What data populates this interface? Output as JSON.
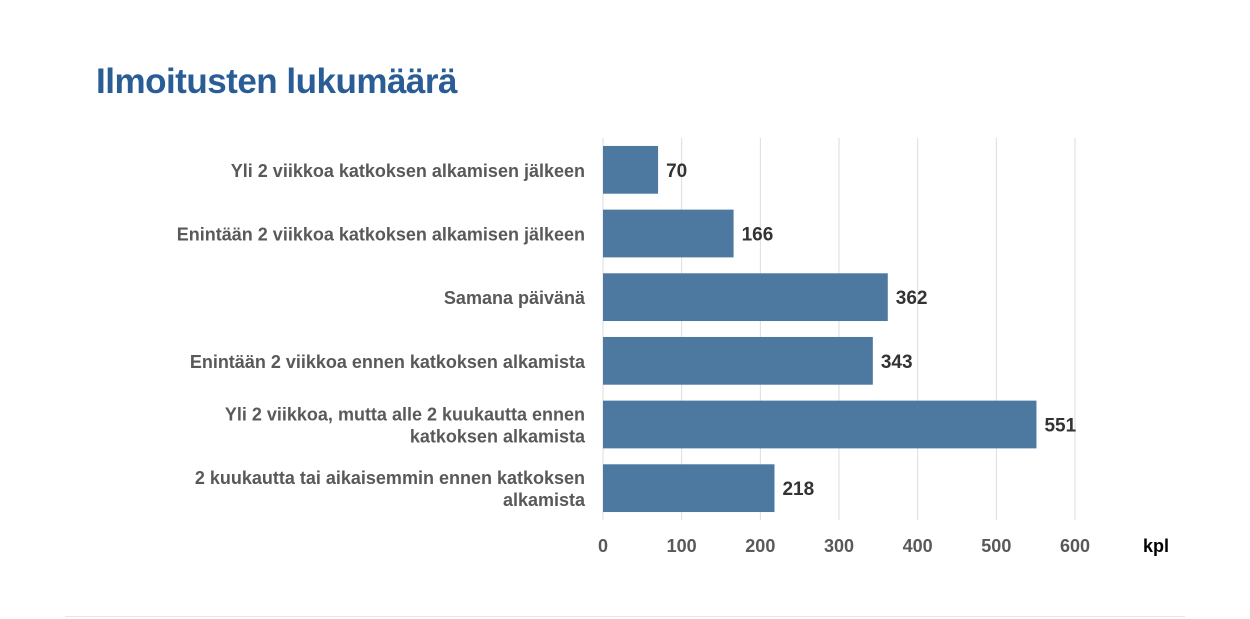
{
  "chart_data": {
    "type": "bar",
    "orientation": "horizontal",
    "title": "Ilmoitusten lukumäärä",
    "categories": [
      "Yli 2 viikkoa katkoksen alkamisen jälkeen",
      "Enintään 2 viikkoa katkoksen alkamisen jälkeen",
      "Samana päivänä",
      "Enintään 2 viikkoa ennen katkoksen alkamista",
      "Yli 2 viikkoa, mutta alle 2 kuukautta ennen katkoksen alkamista",
      "2 kuukautta tai aikaisemmin ennen katkoksen alkamista"
    ],
    "category_lines": [
      [
        "Yli 2 viikkoa katkoksen alkamisen jälkeen"
      ],
      [
        "Enintään 2 viikkoa katkoksen alkamisen jälkeen"
      ],
      [
        "Samana päivänä"
      ],
      [
        "Enintään 2 viikkoa ennen katkoksen alkamista"
      ],
      [
        "Yli 2 viikkoa, mutta alle 2 kuukautta ennen",
        "katkoksen alkamista"
      ],
      [
        "2 kuukautta tai aikaisemmin ennen katkoksen",
        "alkamista"
      ]
    ],
    "values": [
      70,
      166,
      362,
      343,
      551,
      218
    ],
    "xlabel": "kpl",
    "ylabel": "",
    "xlim": [
      0,
      600
    ],
    "xticks": [
      0,
      100,
      200,
      300,
      400,
      500,
      600
    ],
    "grid": true,
    "legend": "none",
    "bar_color": "#4d78a0",
    "grid_color": "#dddddd",
    "label_color": "#595959",
    "value_label_color": "#333333"
  }
}
